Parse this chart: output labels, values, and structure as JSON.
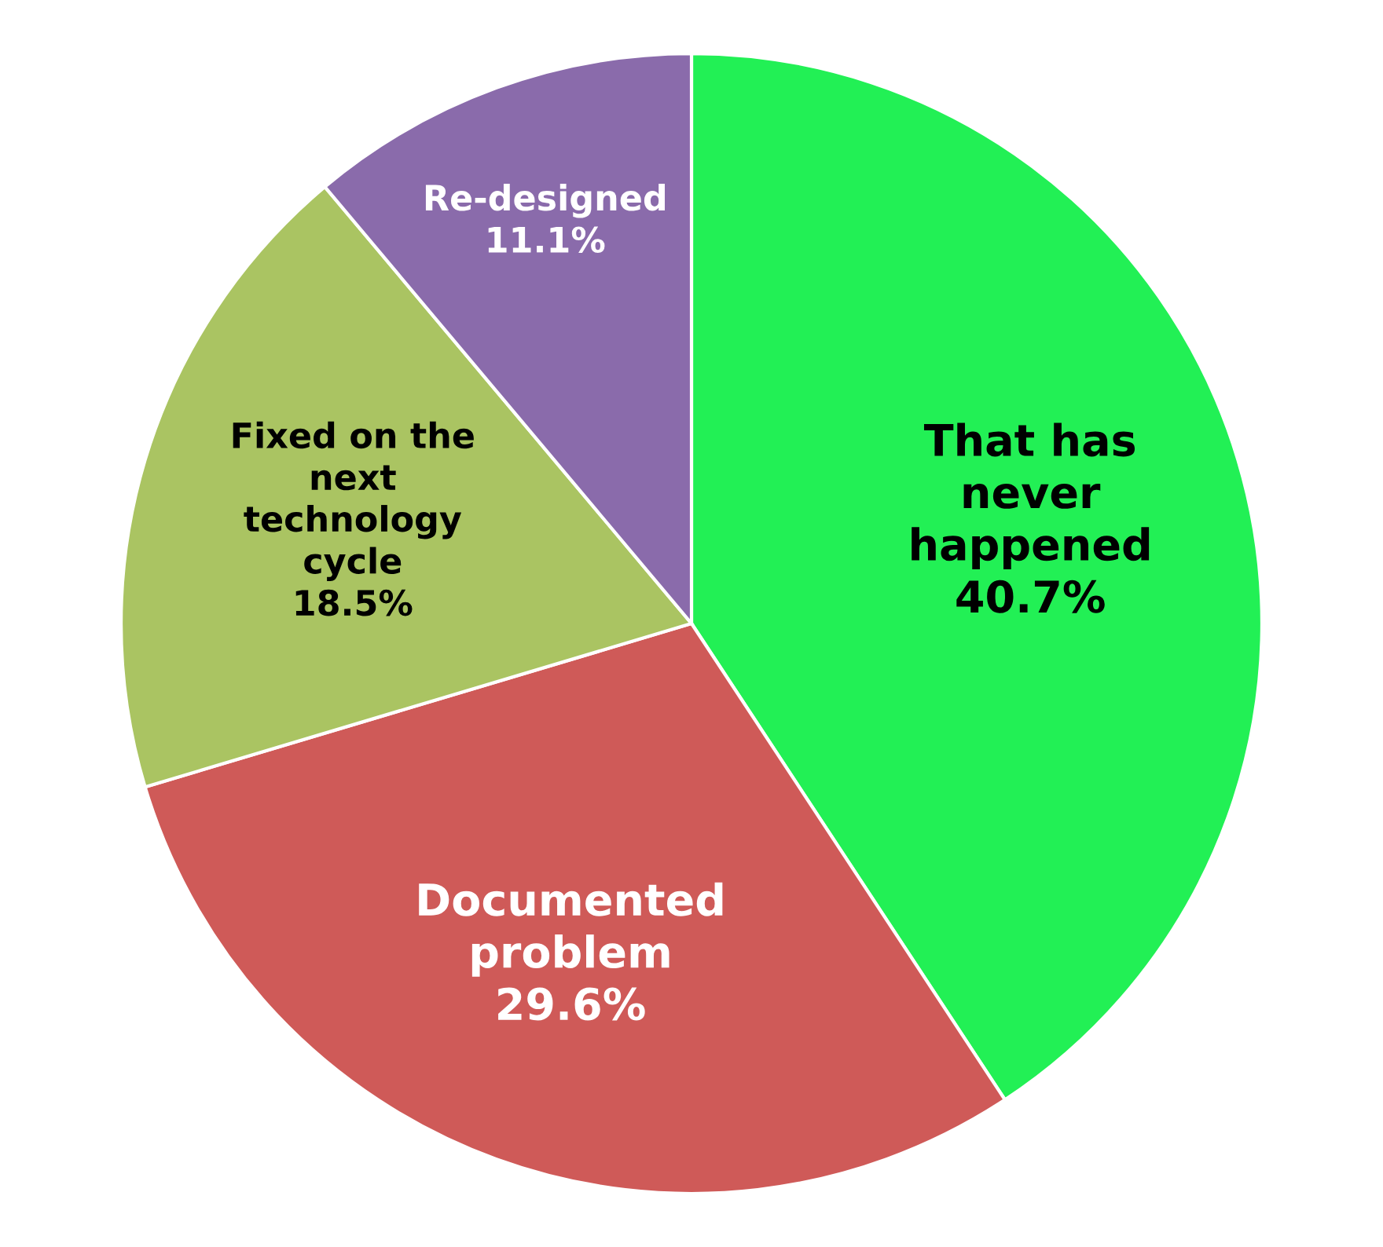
{
  "chart_data": {
    "type": "pie",
    "categories": [
      "That has\nnever\nhappened",
      "Documented\nproblem",
      "Fixed on the\nnext\ntechnology\ncycle",
      "Re-designed"
    ],
    "values": [
      40.7,
      29.6,
      18.5,
      11.1
    ],
    "colors": [
      "#22f055",
      "#cf5a58",
      "#aac462",
      "#8a6bab"
    ],
    "value_labels": [
      "40.7%",
      "29.6%",
      "18.5%",
      "11.1%"
    ]
  }
}
